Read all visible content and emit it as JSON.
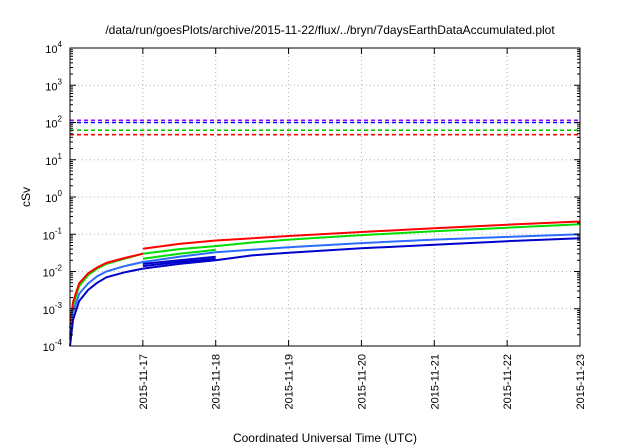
{
  "chart_data": {
    "type": "line",
    "title": "/data/run/goesPlots/archive/2015-11-22/flux/../bryn/7daysEarthDataAccumulated.plot",
    "xlabel": "Coordinated Universal Time (UTC)",
    "ylabel": "cSv",
    "x_scale": "time",
    "y_scale": "log",
    "xlim": [
      "2015-11-16T00:00",
      "2015-11-23T00:00"
    ],
    "ylim": [
      0.0001,
      10000
    ],
    "x_ticks": [
      "2015-11-17",
      "2015-11-18",
      "2015-11-19",
      "2015-11-20",
      "2015-11-21",
      "2015-11-22",
      "2015-11-23"
    ],
    "y_ticks": [
      {
        "value": 0.0001,
        "base": "10",
        "exp": "-4"
      },
      {
        "value": 0.001,
        "base": "10",
        "exp": "-3"
      },
      {
        "value": 0.01,
        "base": "10",
        "exp": "-2"
      },
      {
        "value": 0.1,
        "base": "10",
        "exp": "-1"
      },
      {
        "value": 1,
        "base": "10",
        "exp": "0"
      },
      {
        "value": 10,
        "base": "10",
        "exp": "1"
      },
      {
        "value": 100,
        "base": "10",
        "exp": "2"
      },
      {
        "value": 1000,
        "base": "10",
        "exp": "3"
      },
      {
        "value": 10000,
        "base": "10",
        "exp": "4"
      }
    ],
    "grid": true,
    "legend": "none",
    "thresholds": [
      {
        "color": "#a000ff",
        "value": 115
      },
      {
        "color": "#0000ff",
        "value": 100
      },
      {
        "color": "#00cc00",
        "value": 62
      },
      {
        "color": "#ff0000",
        "value": 47
      }
    ],
    "series": [
      {
        "color": "#ff0000",
        "segments": [
          [
            [
              "2015-11-17T00:00",
              0.041
            ],
            [
              "2015-11-17T12:00",
              0.055
            ],
            [
              "2015-11-18T00:00",
              0.068
            ],
            [
              "2015-11-19T00:00",
              0.09
            ],
            [
              "2015-11-20T00:00",
              0.115
            ],
            [
              "2015-11-21T00:00",
              0.145
            ],
            [
              "2015-11-22T00:00",
              0.18
            ],
            [
              "2015-11-23T00:00",
              0.22
            ]
          ]
        ]
      },
      {
        "color": "#00dd00",
        "segments": [
          [
            [
              "2015-11-16T00:00",
              0.0002
            ],
            [
              "2015-11-16T01:00",
              0.0012
            ],
            [
              "2015-11-16T03:00",
              0.004
            ],
            [
              "2015-11-16T06:00",
              0.008
            ],
            [
              "2015-11-16T09:00",
              0.012
            ],
            [
              "2015-11-16T12:00",
              0.016
            ],
            [
              "2015-11-16T18:00",
              0.022
            ],
            [
              "2015-11-17T00:00",
              0.03
            ]
          ],
          [
            [
              "2015-11-17T00:00",
              0.03
            ],
            [
              "2015-11-17T12:00",
              0.04
            ],
            [
              "2015-11-18T00:00",
              0.048
            ],
            [
              "2015-11-18T12:00",
              0.06
            ],
            [
              "2015-11-19T00:00",
              0.072
            ],
            [
              "2015-11-20T00:00",
              0.095
            ],
            [
              "2015-11-21T00:00",
              0.12
            ],
            [
              "2015-11-22T00:00",
              0.15
            ],
            [
              "2015-11-23T00:00",
              0.185
            ]
          ],
          [
            [
              "2015-11-17T00:00",
              0.022
            ],
            [
              "2015-11-17T12:00",
              0.03
            ],
            [
              "2015-11-18T00:00",
              0.038
            ]
          ]
        ]
      },
      {
        "color": "#ff0000",
        "segments": [
          [
            [
              "2015-11-16T00:00",
              0.0003
            ],
            [
              "2015-11-16T01:00",
              0.0015
            ],
            [
              "2015-11-16T03:00",
              0.0048
            ],
            [
              "2015-11-16T06:00",
              0.009
            ],
            [
              "2015-11-16T09:00",
              0.013
            ],
            [
              "2015-11-16T12:00",
              0.017
            ],
            [
              "2015-11-16T18:00",
              0.023
            ],
            [
              "2015-11-17T00:00",
              0.03
            ]
          ]
        ]
      },
      {
        "color": "#2a6cff",
        "segments": [
          [
            [
              "2015-11-16T00:00",
              0.00015
            ],
            [
              "2015-11-16T01:00",
              0.0008
            ],
            [
              "2015-11-16T03:00",
              0.0025
            ],
            [
              "2015-11-16T06:00",
              0.0048
            ],
            [
              "2015-11-16T09:00",
              0.0075
            ],
            [
              "2015-11-16T12:00",
              0.01
            ],
            [
              "2015-11-16T18:00",
              0.014
            ],
            [
              "2015-11-17T00:00",
              0.018
            ]
          ],
          [
            [
              "2015-11-17T00:00",
              0.018
            ],
            [
              "2015-11-17T12:00",
              0.025
            ],
            [
              "2015-11-18T00:00",
              0.033
            ],
            [
              "2015-11-19T00:00",
              0.045
            ],
            [
              "2015-11-20T00:00",
              0.058
            ],
            [
              "2015-11-21T00:00",
              0.072
            ],
            [
              "2015-11-22T00:00",
              0.085
            ],
            [
              "2015-11-23T00:00",
              0.1
            ]
          ]
        ]
      },
      {
        "color": "#0000cc",
        "segments": [
          [
            [
              "2015-11-16T00:00",
              0.0001
            ],
            [
              "2015-11-16T01:00",
              0.0005
            ],
            [
              "2015-11-16T03:00",
              0.0016
            ],
            [
              "2015-11-16T06:00",
              0.0032
            ],
            [
              "2015-11-16T09:00",
              0.005
            ],
            [
              "2015-11-16T12:00",
              0.007
            ],
            [
              "2015-11-16T18:00",
              0.0095
            ],
            [
              "2015-11-17T00:00",
              0.012
            ]
          ],
          [
            [
              "2015-11-17T00:00",
              0.012
            ],
            [
              "2015-11-17T12:00",
              0.016
            ],
            [
              "2015-11-18T00:00",
              0.02
            ],
            [
              "2015-11-18T12:00",
              0.027
            ],
            [
              "2015-11-19T00:00",
              0.032
            ],
            [
              "2015-11-20T00:00",
              0.042
            ],
            [
              "2015-11-21T00:00",
              0.052
            ],
            [
              "2015-11-22T00:00",
              0.065
            ],
            [
              "2015-11-23T00:00",
              0.078
            ]
          ],
          [
            [
              "2015-11-17T00:00",
              0.014
            ],
            [
              "2015-11-17T12:00",
              0.018
            ],
            [
              "2015-11-18T00:00",
              0.022
            ]
          ],
          [
            [
              "2015-11-17T00:00",
              0.016
            ],
            [
              "2015-11-17T12:00",
              0.02
            ],
            [
              "2015-11-18T00:00",
              0.025
            ]
          ]
        ]
      }
    ]
  }
}
